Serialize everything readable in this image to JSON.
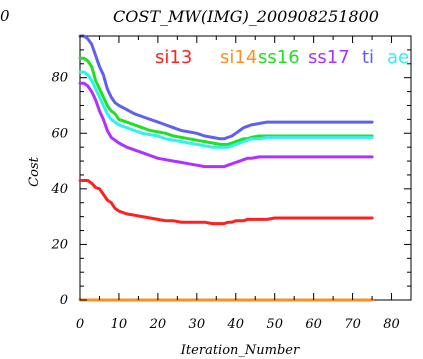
{
  "corner_label": "0",
  "chart_data": {
    "type": "line",
    "title": "COST_MW(IMG)_200908251800",
    "xlabel": "Iteration_Number",
    "ylabel": "Cost",
    "xlim": [
      0,
      85
    ],
    "ylim": [
      0,
      95
    ],
    "xticks": [
      0,
      10,
      20,
      30,
      40,
      50,
      60,
      70,
      80
    ],
    "yticks": [
      0,
      20,
      40,
      60,
      80
    ],
    "grid": false,
    "legend_position": "top-right inside",
    "x": [
      0,
      1,
      2,
      3,
      4,
      5,
      6,
      7,
      8,
      9,
      10,
      12,
      14,
      16,
      18,
      20,
      22,
      24,
      26,
      28,
      30,
      32,
      34,
      36,
      37,
      38,
      39,
      40,
      41,
      42,
      43,
      44,
      46,
      48,
      50,
      55,
      60,
      65,
      70,
      75
    ],
    "series": [
      {
        "name": "si13",
        "color": "#ff2020",
        "values": [
          43,
          43,
          43,
          42,
          40.5,
          40,
          38,
          36,
          35,
          33,
          32,
          31,
          30.5,
          30,
          29.5,
          29,
          28.5,
          28.5,
          28,
          28,
          28,
          28,
          27.5,
          27.5,
          27.5,
          28,
          28,
          28.5,
          28.5,
          28.5,
          29,
          29,
          29,
          29,
          29.5,
          29.5,
          29.5,
          29.5,
          29.5,
          29.5
        ]
      },
      {
        "name": "si14",
        "color": "#ff9020",
        "values": [
          0,
          0,
          0,
          0,
          0,
          0,
          0,
          0,
          0,
          0,
          0,
          0,
          0,
          0,
          0,
          0,
          0,
          0,
          0,
          0,
          0,
          0,
          0,
          0,
          0,
          0,
          0,
          0,
          0,
          0,
          0,
          0,
          0,
          0,
          0,
          0,
          0,
          0,
          0,
          0
        ]
      },
      {
        "name": "ss16",
        "color": "#20e020",
        "values": [
          87,
          87,
          86,
          84,
          79,
          76,
          73,
          70,
          68,
          67,
          65,
          64,
          63,
          62,
          61,
          60.5,
          60,
          59,
          58.5,
          58,
          57.5,
          57,
          56.5,
          56,
          56,
          56,
          56.5,
          57,
          57.5,
          58,
          58,
          58.5,
          59,
          59,
          59,
          59,
          59,
          59,
          59,
          59
        ]
      },
      {
        "name": "ss17",
        "color": "#b030ff",
        "values": [
          78,
          78,
          77,
          75,
          72,
          68,
          65,
          61,
          58.5,
          57.5,
          56.5,
          55,
          54,
          53,
          52,
          51,
          50.5,
          50,
          49.5,
          49,
          48.5,
          48,
          48,
          48,
          48,
          48.5,
          49,
          49.5,
          50,
          50.5,
          51,
          51,
          51.5,
          51.5,
          51.5,
          51.5,
          51.5,
          51.5,
          51.5,
          51.5
        ]
      },
      {
        "name": "ti",
        "color": "#6060f0",
        "values": [
          95,
          95,
          94,
          92,
          88,
          84,
          81,
          76,
          73,
          71,
          70,
          68.5,
          67,
          66,
          65,
          64,
          63,
          62,
          61,
          60.5,
          60,
          59,
          58.5,
          58,
          58,
          58.5,
          59,
          60,
          61,
          62,
          62.5,
          63,
          63.5,
          64,
          64,
          64,
          64,
          64,
          64,
          64
        ]
      },
      {
        "name": "ae",
        "color": "#30f0f0",
        "values": [
          82,
          82,
          81,
          79,
          76,
          73,
          70,
          67,
          65,
          64,
          63,
          62,
          61,
          60,
          59.5,
          59,
          58,
          57.5,
          57,
          56.5,
          56,
          55.5,
          55,
          55,
          55,
          55,
          55.5,
          56,
          56.5,
          57,
          57.5,
          58,
          58,
          58.5,
          58.5,
          58.5,
          58.5,
          58.5,
          58.5,
          58.5
        ]
      }
    ]
  }
}
